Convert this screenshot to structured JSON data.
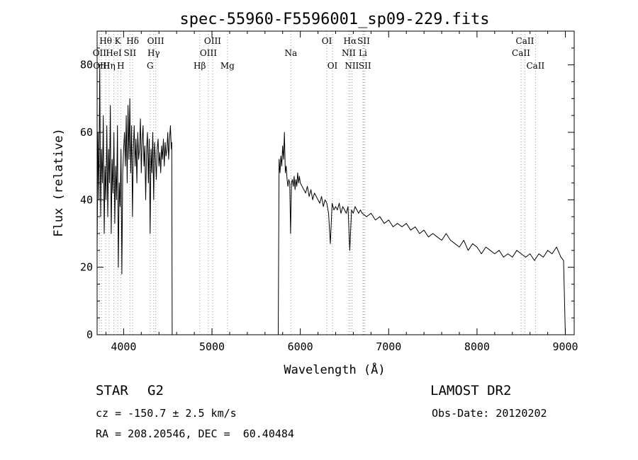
{
  "chart_data": {
    "type": "line",
    "title": "spec-55960-F5596001_sp09-229.fits",
    "xlabel": "Wavelength (Å)",
    "ylabel": "Flux (relative)",
    "xlim": [
      3700,
      9100
    ],
    "ylim": [
      0,
      90
    ],
    "x_ticks": [
      4000,
      5000,
      6000,
      7000,
      8000,
      9000
    ],
    "y_ticks": [
      0,
      20,
      40,
      60,
      80
    ],
    "grid": false,
    "series": [
      {
        "segments": [
          {
            "x": [
              3700,
              3710,
              3720,
              3730,
              3740,
              3750,
              3760,
              3770,
              3780,
              3790,
              3800,
              3810,
              3820,
              3830,
              3840,
              3850,
              3860,
              3870,
              3880,
              3890,
              3900,
              3910,
              3920,
              3930,
              3940,
              3950,
              3960,
              3970,
              3980,
              3990,
              4000,
              4010,
              4020,
              4030,
              4040,
              4050,
              4060,
              4070,
              4080,
              4090,
              4100,
              4110,
              4120,
              4130,
              4140,
              4150,
              4160,
              4170,
              4180,
              4190,
              4200,
              4210,
              4220,
              4230,
              4240,
              4250,
              4260,
              4270,
              4280,
              4290,
              4300,
              4310,
              4320,
              4330,
              4340,
              4350,
              4360,
              4370,
              4380,
              4390,
              4400,
              4410,
              4420,
              4430,
              4440,
              4450,
              4460,
              4470,
              4480,
              4490,
              4500,
              4510,
              4520,
              4530,
              4540,
              4545,
              4550
            ],
            "y": [
              25,
              60,
              40,
              80,
              35,
              55,
              45,
              65,
              30,
              50,
              40,
              62,
              35,
              55,
              45,
              68,
              30,
              52,
              42,
              60,
              33,
              50,
              40,
              62,
              20,
              45,
              38,
              55,
              18,
              48,
              55,
              60,
              50,
              65,
              45,
              68,
              52,
              70,
              48,
              62,
              35,
              55,
              62,
              50,
              58,
              45,
              60,
              52,
              55,
              64,
              48,
              58,
              62,
              50,
              56,
              40,
              55,
              60,
              45,
              58,
              30,
              55,
              48,
              60,
              40,
              57,
              52,
              46,
              55,
              58,
              50,
              54,
              48,
              56,
              52,
              58,
              50,
              57,
              53,
              55,
              60,
              52,
              58,
              62,
              55,
              57,
              0
            ]
          },
          {
            "x": [
              5750,
              5760,
              5770,
              5780,
              5790,
              5800,
              5810,
              5820,
              5830,
              5840,
              5850,
              5860,
              5870,
              5880,
              5890,
              5900,
              5910,
              5920,
              5930,
              5940,
              5950,
              5960,
              5970,
              5980,
              5990,
              6000,
              6020,
              6040,
              6060,
              6080,
              6100,
              6120,
              6140,
              6160,
              6180,
              6200,
              6220,
              6240,
              6260,
              6280,
              6300,
              6320,
              6340,
              6360,
              6380,
              6400,
              6420,
              6440,
              6460,
              6480,
              6500,
              6520,
              6540,
              6560,
              6580,
              6600,
              6620,
              6640,
              6660,
              6680,
              6700,
              6750,
              6800,
              6850,
              6900,
              6950,
              7000,
              7050,
              7100,
              7150,
              7200,
              7250,
              7300,
              7350,
              7400,
              7450,
              7500,
              7550,
              7600,
              7650,
              7700,
              7750,
              7800,
              7850,
              7900,
              7950,
              8000,
              8050,
              8100,
              8150,
              8200,
              8250,
              8300,
              8350,
              8400,
              8450,
              8500,
              8550,
              8600,
              8650,
              8700,
              8750,
              8800,
              8850,
              8900,
              8950,
              8980,
              9000
            ],
            "y": [
              0,
              52,
              48,
              53,
              50,
              56,
              52,
              60,
              48,
              50,
              46,
              44,
              46,
              45,
              30,
              45,
              46,
              44,
              47,
              43,
              46,
              44,
              48,
              45,
              47,
              45,
              44,
              43,
              42,
              44,
              41,
              43,
              40,
              42,
              41,
              40,
              39,
              41,
              38,
              40,
              39,
              36,
              27,
              39,
              37,
              38,
              37,
              39,
              36,
              38,
              37,
              36,
              38,
              25,
              37,
              36,
              38,
              37,
              36,
              37,
              36,
              35,
              36,
              34,
              35,
              33,
              34,
              32,
              33,
              32,
              33,
              31,
              32,
              30,
              31,
              29,
              30,
              29,
              28,
              30,
              28,
              27,
              26,
              28,
              25,
              27,
              26,
              24,
              26,
              25,
              24,
              25,
              23,
              24,
              23,
              25,
              24,
              23,
              24,
              22,
              24,
              23,
              25,
              24,
              26,
              23,
              22,
              0
            ]
          }
        ]
      }
    ],
    "line_markers": [
      {
        "label": "Hθ",
        "x": 3797,
        "row": 0
      },
      {
        "label": "K",
        "x": 3934,
        "row": 0
      },
      {
        "label": "Hδ",
        "x": 4102,
        "row": 0
      },
      {
        "label": "OIII",
        "x": 4363,
        "row": 0
      },
      {
        "label": "OIII",
        "x": 5007,
        "row": 0
      },
      {
        "label": "OI",
        "x": 6300,
        "row": 0
      },
      {
        "label": "Hα",
        "x": 6563,
        "row": 0
      },
      {
        "label": "SII",
        "x": 6717,
        "row": 0
      },
      {
        "label": "CaII",
        "x": 8542,
        "row": 0
      },
      {
        "label": "OII",
        "x": 3727,
        "row": 1
      },
      {
        "label": "HeI",
        "x": 3889,
        "row": 1
      },
      {
        "label": "SII",
        "x": 4072,
        "row": 1
      },
      {
        "label": "Hγ",
        "x": 4340,
        "row": 1
      },
      {
        "label": "OIII",
        "x": 4959,
        "row": 1
      },
      {
        "label": "Na",
        "x": 5893,
        "row": 1
      },
      {
        "label": "NII",
        "x": 6548,
        "row": 1
      },
      {
        "label": "Li",
        "x": 6708,
        "row": 1
      },
      {
        "label": "CaII",
        "x": 8498,
        "row": 1
      },
      {
        "label": "OIII",
        "x": 3750,
        "row": 2
      },
      {
        "label": "Hη",
        "x": 3835,
        "row": 2
      },
      {
        "label": "H",
        "x": 3968,
        "row": 2
      },
      {
        "label": "G",
        "x": 4300,
        "row": 2
      },
      {
        "label": "Hβ",
        "x": 4861,
        "row": 2
      },
      {
        "label": "Mg",
        "x": 5175,
        "row": 2
      },
      {
        "label": "OI",
        "x": 6364,
        "row": 2
      },
      {
        "label": "NII",
        "x": 6583,
        "row": 2
      },
      {
        "label": "SII",
        "x": 6731,
        "row": 2
      },
      {
        "label": "CaII",
        "x": 8662,
        "row": 2
      }
    ]
  },
  "info": {
    "object_class": "STAR",
    "subclass": "G2",
    "survey": "LAMOST DR2",
    "cz": "cz = -150.7 ± 2.5 km/s",
    "obs_date": "Obs-Date: 20120202",
    "coords": "RA = 208.20546, DEC =  60.40484"
  },
  "colors": {
    "spectrum": "#000000",
    "marker_line": "#999999",
    "background": "#ffffff"
  }
}
